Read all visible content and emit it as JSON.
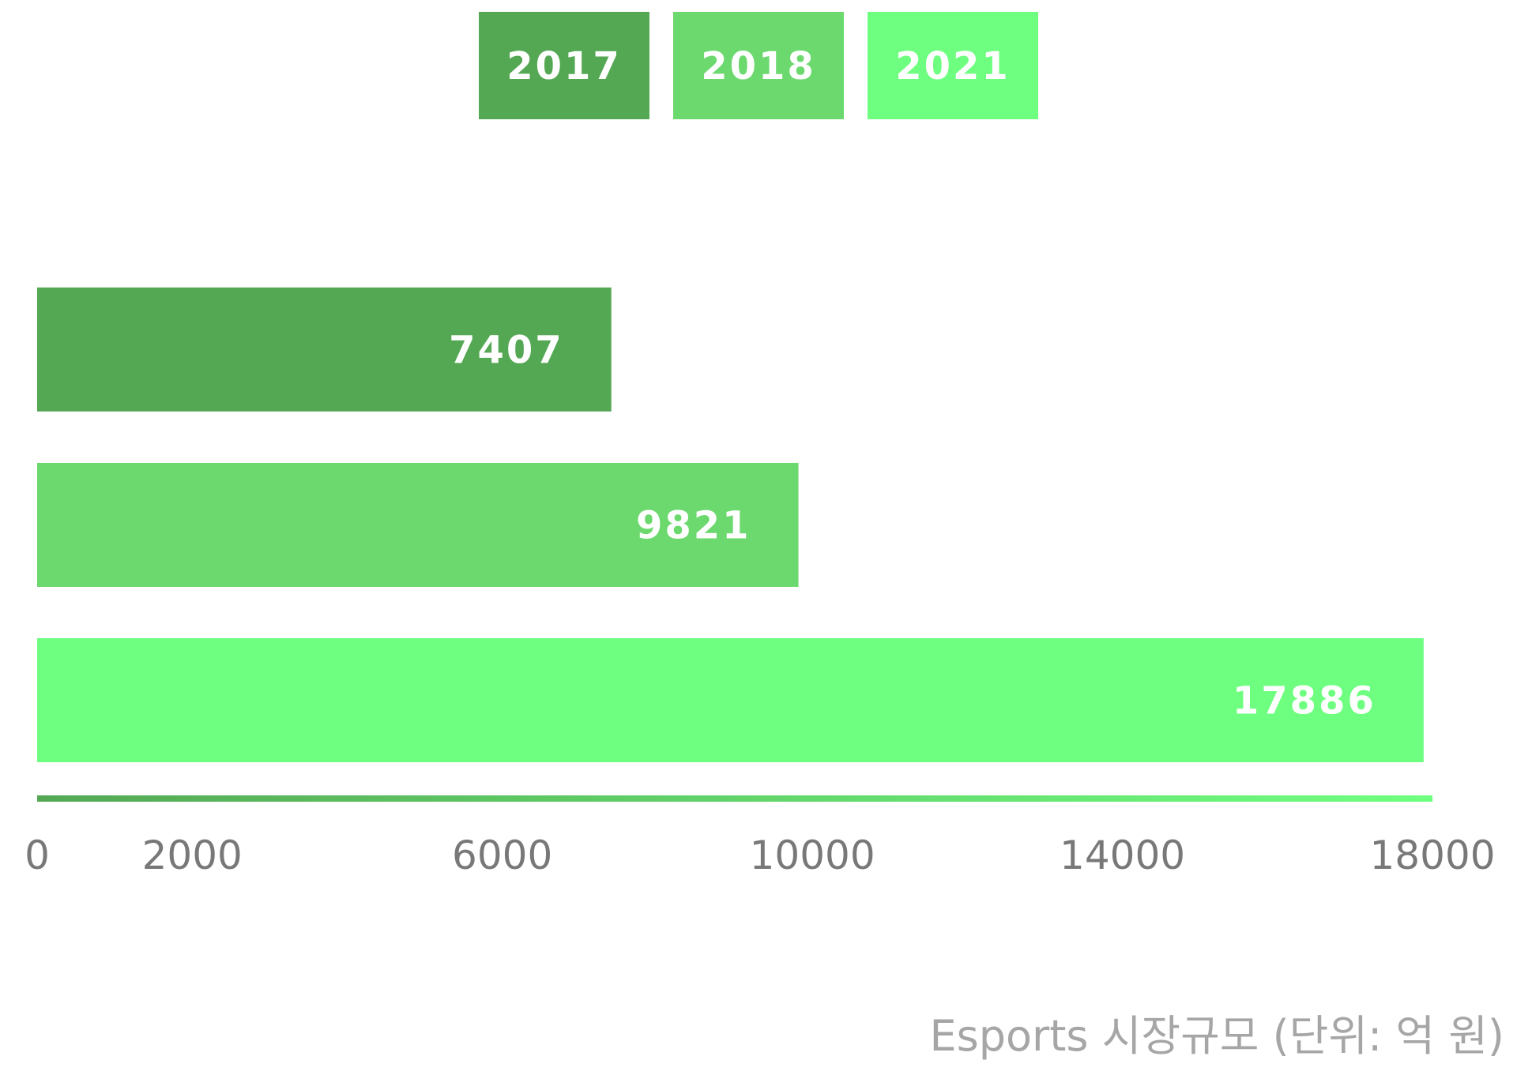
{
  "chart_data": {
    "type": "bar",
    "orientation": "horizontal",
    "categories": [
      "2017",
      "2018",
      "2021"
    ],
    "values": [
      7407,
      9821,
      17886
    ],
    "colors": [
      "#54a854",
      "#6cd96f",
      "#6fff80"
    ],
    "data_labels": [
      "7407",
      "9821",
      "17886"
    ],
    "legend": {
      "position": "top-center",
      "entries": [
        "2017",
        "2018",
        "2021"
      ]
    },
    "xlim": [
      0,
      18000
    ],
    "x_ticks": [
      0,
      2000,
      6000,
      10000,
      14000,
      18000
    ],
    "x_tick_labels": [
      "0",
      "2000",
      "6000",
      "10000",
      "14000",
      "18000"
    ],
    "caption": "Esports 시장규모 (단위: 억 원)",
    "grid": false
  }
}
